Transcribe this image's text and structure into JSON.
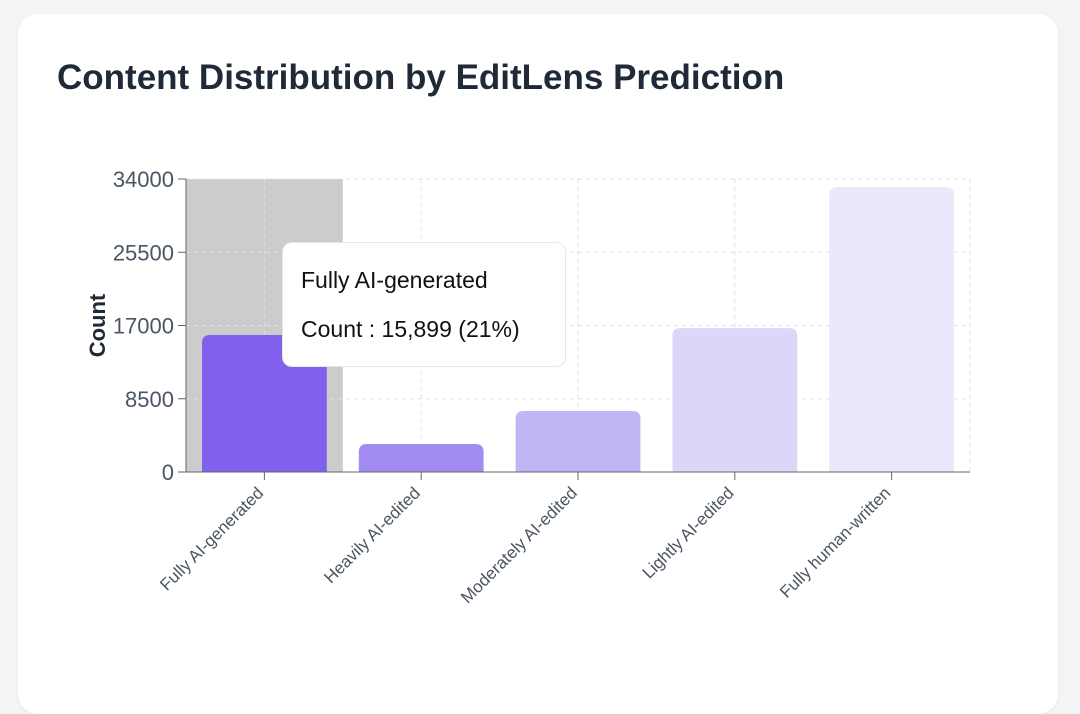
{
  "chart_data": {
    "type": "bar",
    "title": "Content Distribution by EditLens Prediction",
    "xlabel": "",
    "ylabel": "Count",
    "ylim": [
      0,
      34000
    ],
    "yticks": [
      0,
      8500,
      17000,
      25500,
      34000
    ],
    "grid": true,
    "categories": [
      "Fully AI-generated",
      "Heavily AI-edited",
      "Moderately AI-edited",
      "Lightly AI-edited",
      "Fully human-written"
    ],
    "values": [
      15899,
      3250,
      7080,
      16700,
      33060
    ],
    "colors": [
      "#8060ec",
      "#a28cf2",
      "#c2b5f6",
      "#dcd6f8",
      "#ebe8fb"
    ],
    "highlight_index": 0,
    "highlight_color": "#cccccc",
    "tooltip": {
      "title": "Fully AI-generated",
      "label": "Count : 15,899 (21%)"
    }
  }
}
